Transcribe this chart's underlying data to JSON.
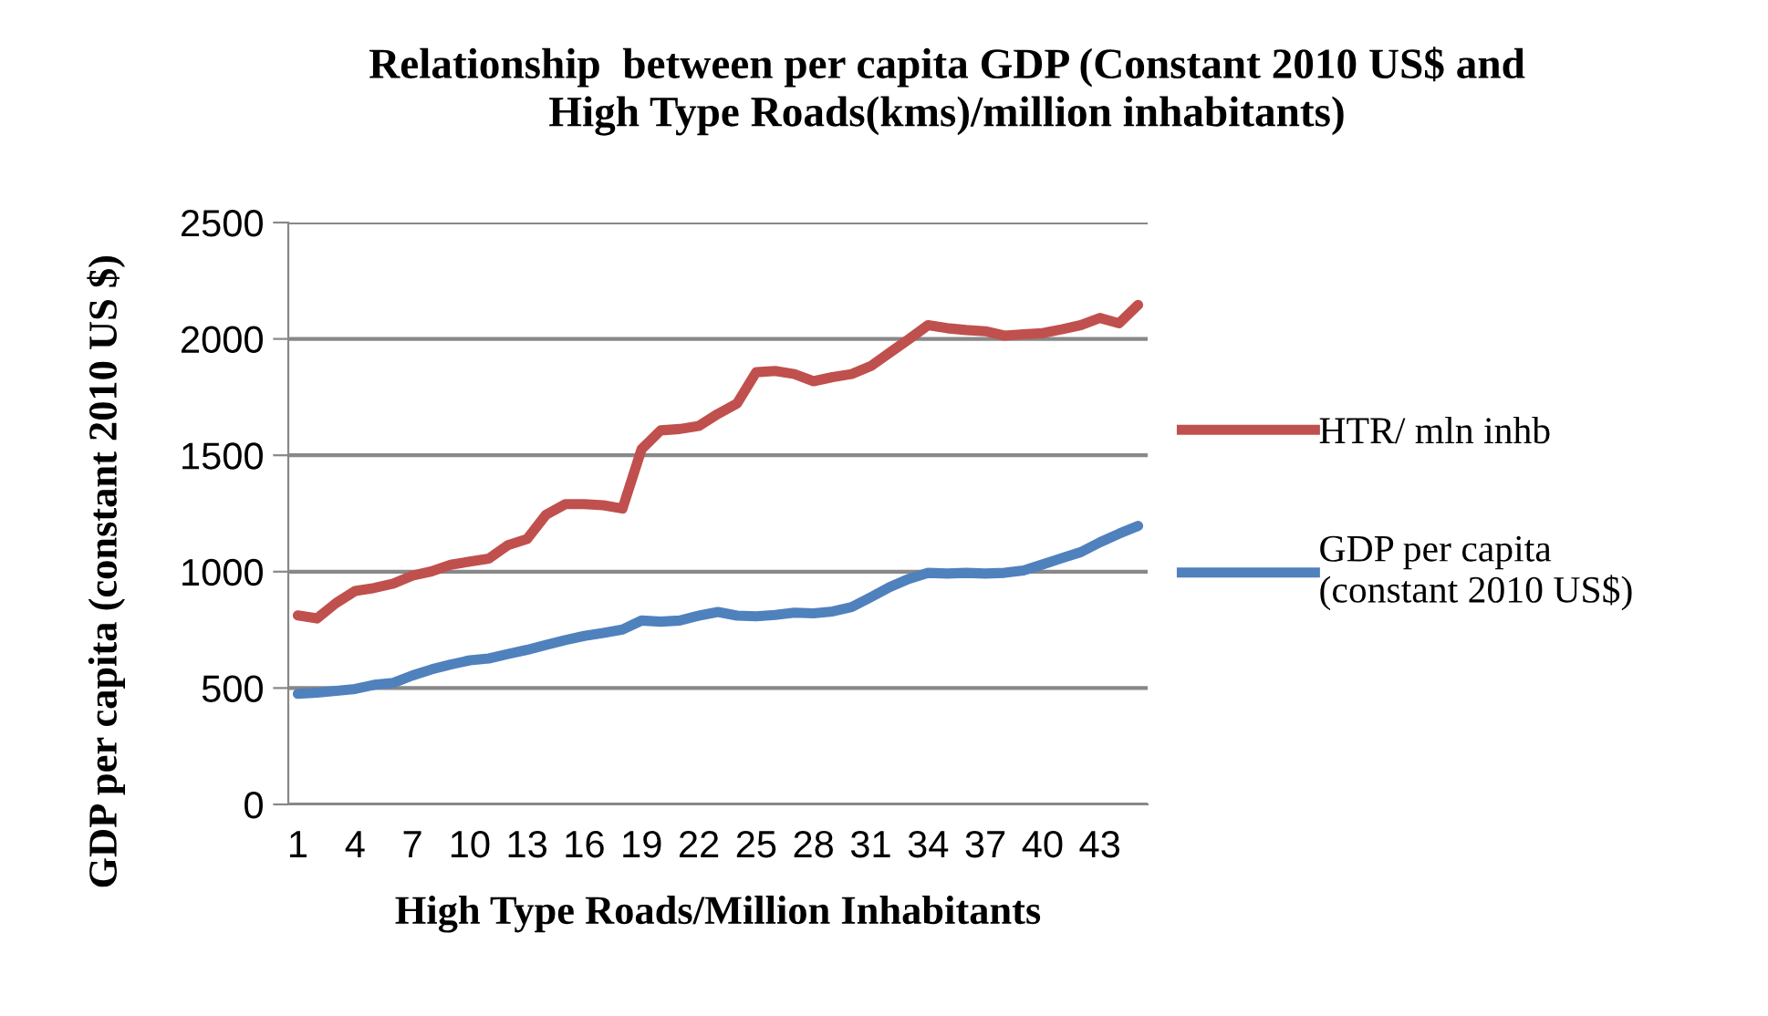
{
  "chart_data": {
    "type": "line",
    "title": "Relationship  between per capita GDP (Constant 2010 US$ and\nHigh Type Roads(kms)/million inhabitants)",
    "xlabel": "High Type Roads/Million Inhabitants",
    "ylabel": "GDP per capita (constant 2010 US $)",
    "categories": [
      "1",
      null,
      null,
      "4",
      null,
      null,
      "7",
      null,
      null,
      "10",
      null,
      null,
      "13",
      null,
      null,
      "16",
      null,
      null,
      "19",
      null,
      null,
      "22",
      null,
      null,
      "25",
      null,
      null,
      "28",
      null,
      null,
      "31",
      null,
      null,
      "34",
      null,
      null,
      "37",
      null,
      null,
      "40",
      null,
      null,
      "43",
      null,
      null
    ],
    "series": [
      {
        "name": "HTR/ mln inhb",
        "color": "#c0504d",
        "values": [
          812,
          799,
          865,
          917,
          930,
          949,
          983,
          1001,
          1030,
          1043,
          1056,
          1114,
          1140,
          1245,
          1290,
          1290,
          1285,
          1271,
          1526,
          1607,
          1613,
          1626,
          1678,
          1723,
          1857,
          1862,
          1849,
          1818,
          1836,
          1849,
          1883,
          1941,
          1999,
          2059,
          2046,
          2038,
          2033,
          2014,
          2020,
          2025,
          2041,
          2059,
          2090,
          2067,
          2146
        ]
      },
      {
        "name": "GDP per capita\n(constant 2010 US$)",
        "color": "#4f81bd",
        "values": [
          475,
          480,
          488,
          496,
          514,
          522,
          554,
          580,
          601,
          619,
          627,
          646,
          664,
          685,
          706,
          724,
          737,
          751,
          790,
          785,
          790,
          811,
          827,
          811,
          808,
          814,
          824,
          821,
          829,
          848,
          890,
          934,
          969,
          995,
          992,
          995,
          992,
          995,
          1005,
          1031,
          1058,
          1084,
          1126,
          1163,
          1197
        ]
      }
    ],
    "ylim": [
      0,
      2500
    ],
    "yticks": [
      0,
      500,
      1000,
      1500,
      2000,
      2500
    ],
    "grid": "y",
    "legend": "right",
    "marker": "none",
    "line_style": "solid"
  }
}
